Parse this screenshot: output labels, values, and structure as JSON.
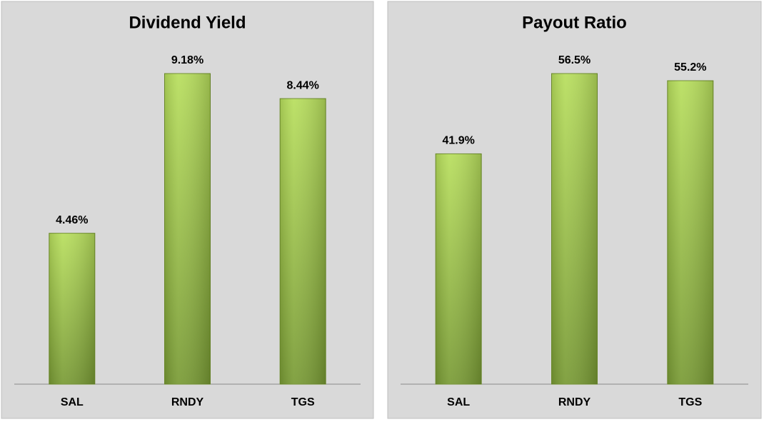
{
  "chart_data": [
    {
      "type": "bar",
      "title": "Dividend Yield",
      "categories": [
        "SAL",
        "RNDY",
        "TGS"
      ],
      "values": [
        4.46,
        9.18,
        8.44
      ],
      "value_labels": [
        "4.46%",
        "9.18%",
        "8.44%"
      ]
    },
    {
      "type": "bar",
      "title": "Payout Ratio",
      "categories": [
        "SAL",
        "RNDY",
        "TGS"
      ],
      "values": [
        41.9,
        56.5,
        55.2
      ],
      "value_labels": [
        "41.9%",
        "56.5%",
        "55.2%"
      ]
    }
  ]
}
